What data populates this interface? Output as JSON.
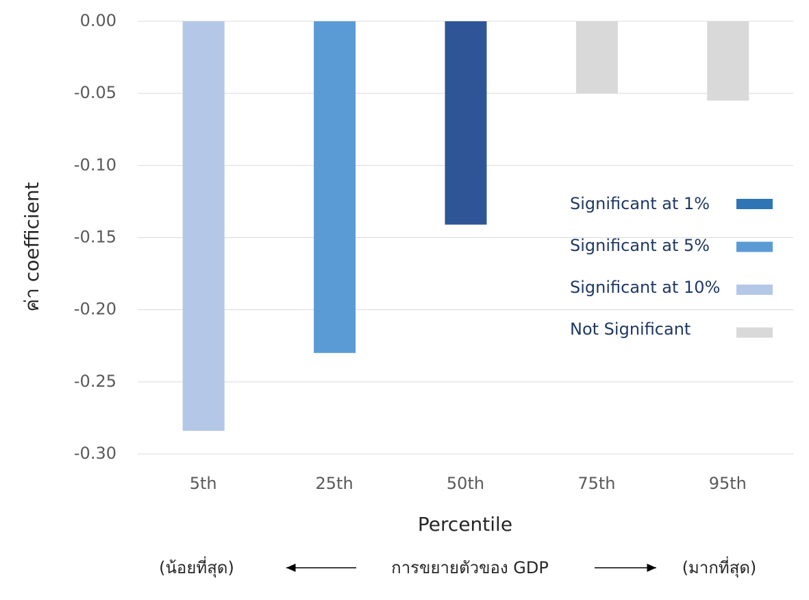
{
  "chart_data": {
    "type": "bar",
    "y_label": "ค่า coefficient",
    "x_label": "Percentile",
    "annotations": {
      "left": "(น้อยที่สุด)",
      "center": "การขยายตัวของ GDP",
      "right": "(มากที่สุด)"
    },
    "categories": [
      "5th",
      "25th",
      "50th",
      "75th",
      "95th"
    ],
    "values": [
      -0.284,
      -0.23,
      -0.141,
      -0.05,
      -0.055
    ],
    "colors": [
      "#b4c7e7",
      "#5b9bd5",
      "#2f5597",
      "#d9d9d9",
      "#d9d9d9"
    ],
    "ylim": [
      -0.3,
      0
    ],
    "yticks": [
      {
        "value": 0,
        "label": "0.00"
      },
      {
        "value": -0.05,
        "label": "-0.05"
      },
      {
        "value": -0.1,
        "label": "-0.10"
      },
      {
        "value": -0.15,
        "label": "-0.15"
      },
      {
        "value": -0.2,
        "label": "-0.20"
      },
      {
        "value": -0.25,
        "label": "-0.25"
      },
      {
        "value": -0.3,
        "label": "-0.30"
      }
    ],
    "grid": true,
    "legend": [
      {
        "name": "Significant at 1%",
        "color": "#2e75b6"
      },
      {
        "name": "Significant at 5%",
        "color": "#5b9bd5"
      },
      {
        "name": "Significant at 10%",
        "color": "#b4c7e7"
      },
      {
        "name": "Not Significant",
        "color": "#d9d9d9"
      }
    ]
  }
}
